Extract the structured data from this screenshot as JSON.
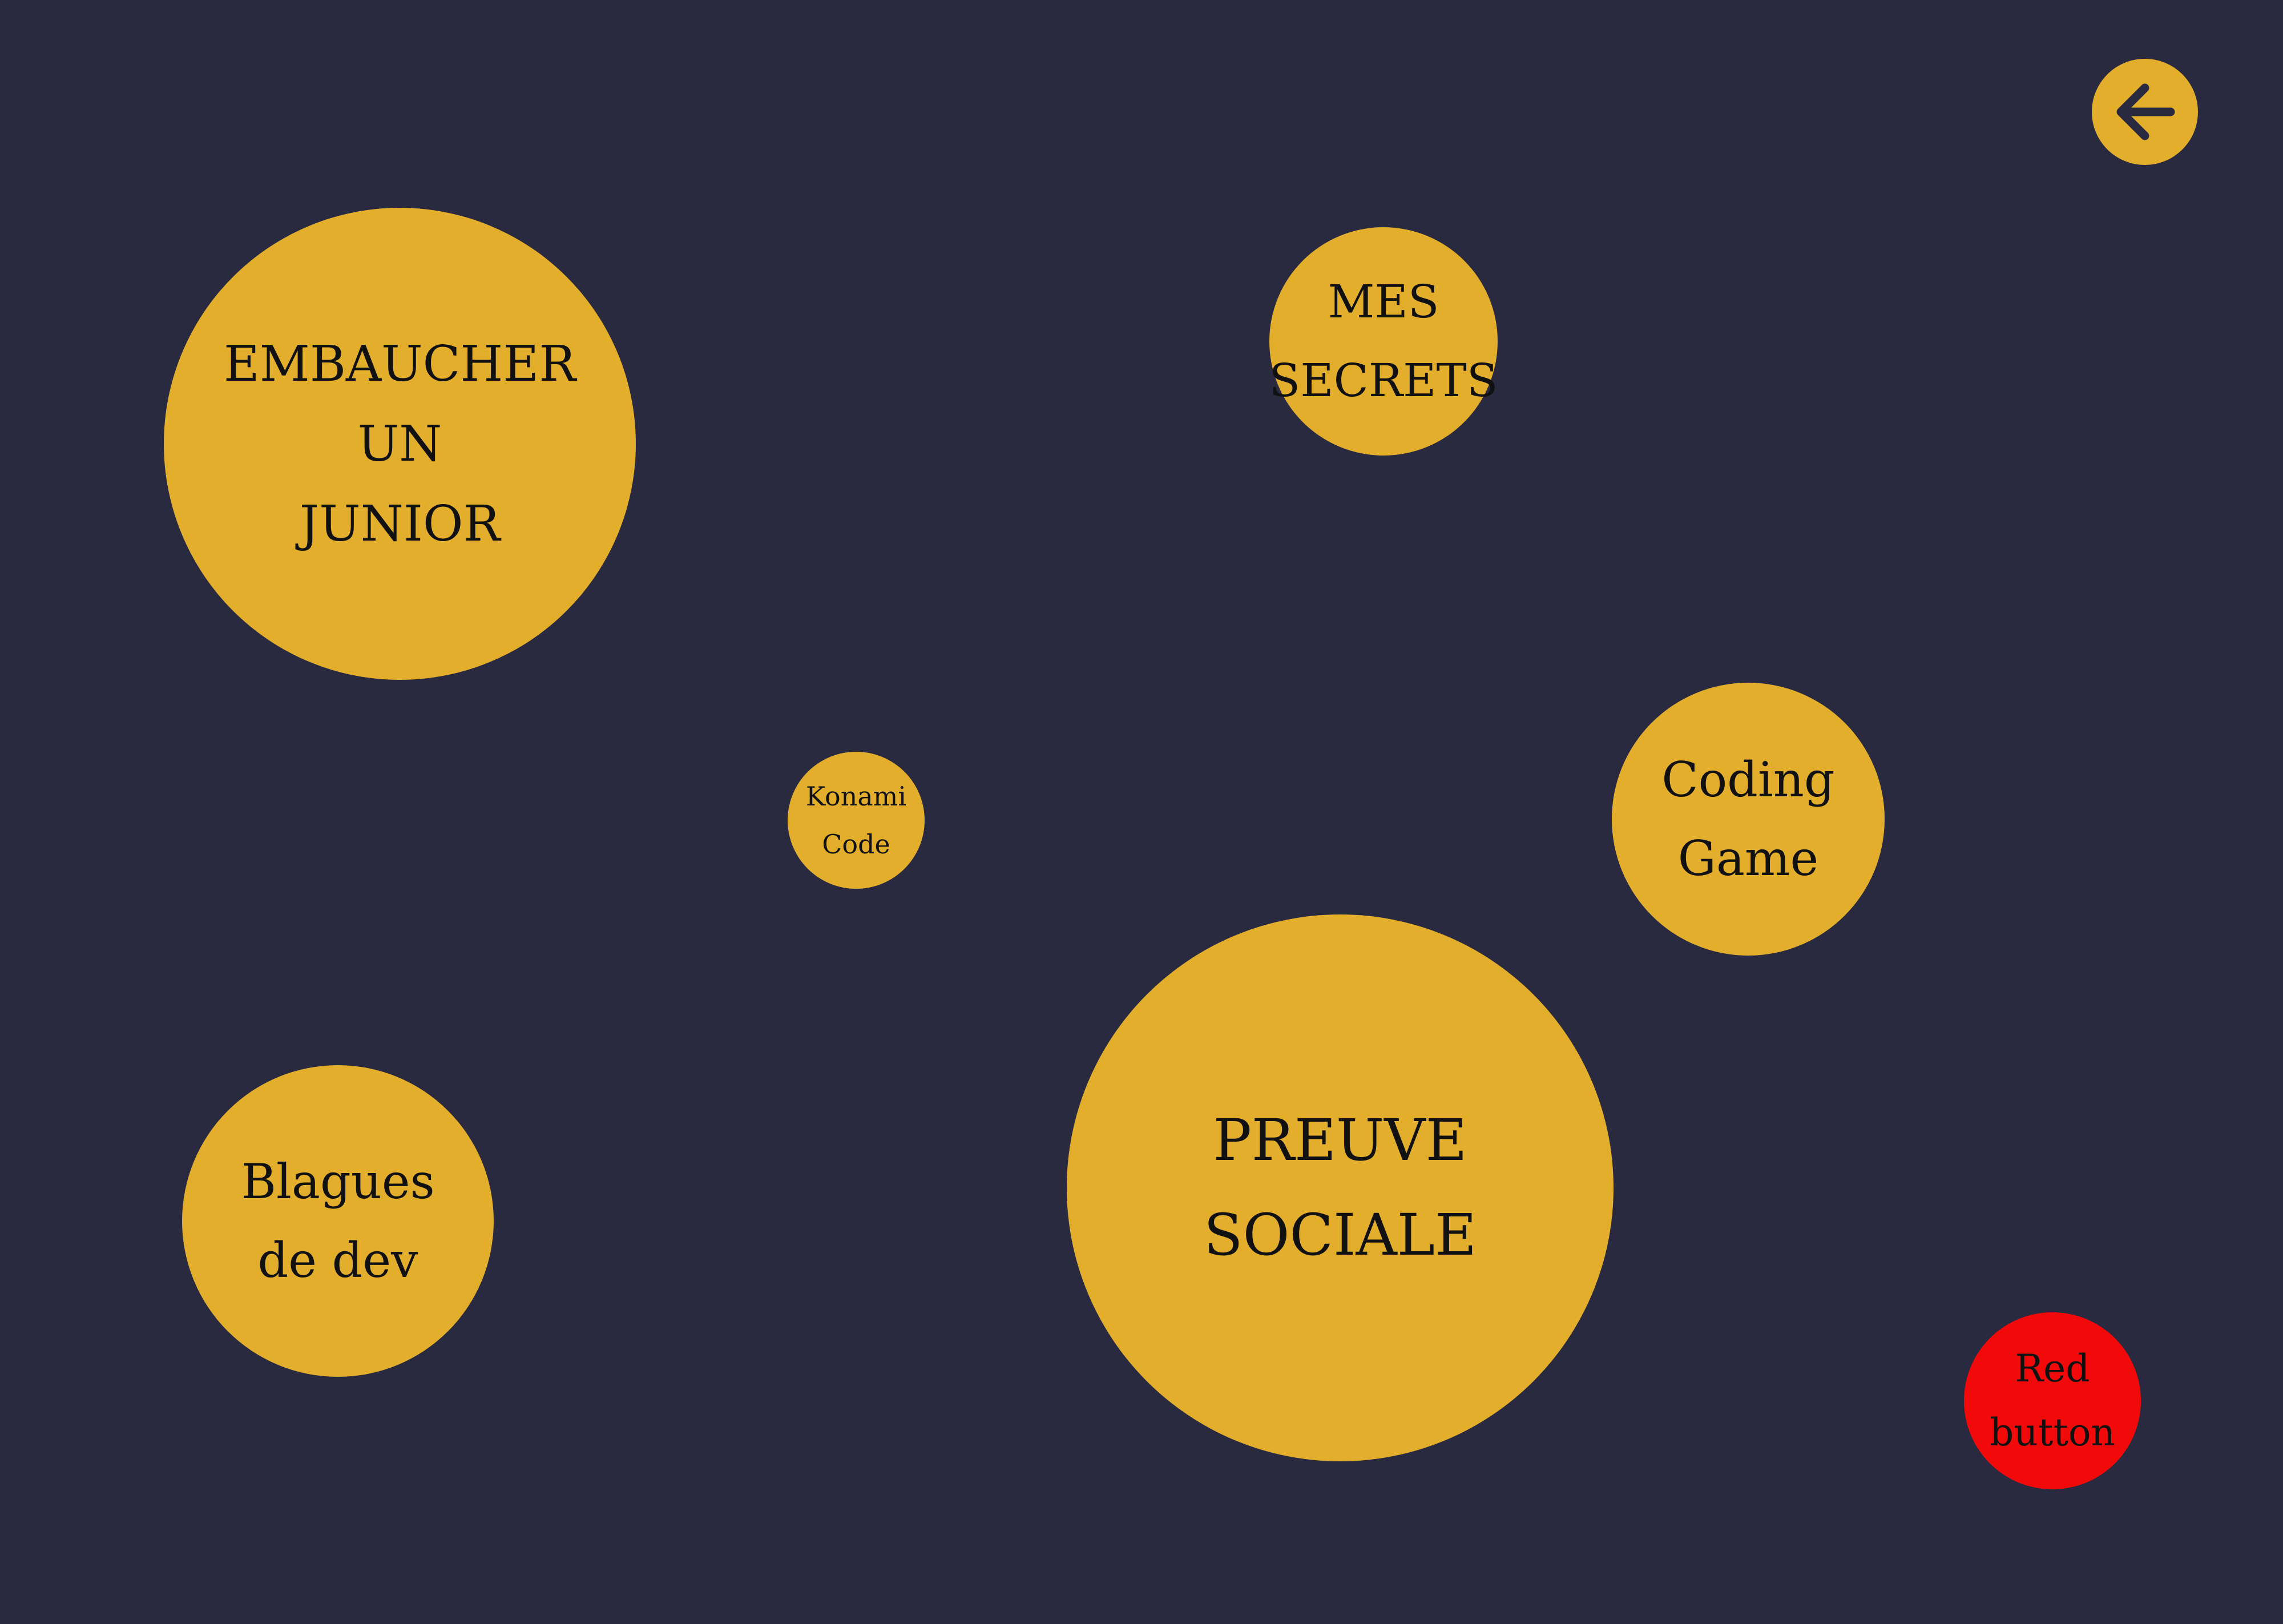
{
  "colors": {
    "background": "#292a3f",
    "bubble": "#e2ae2b",
    "red_button": "#f20a0a",
    "text": "#111111"
  },
  "back_button": {
    "icon": "arrow-left-icon"
  },
  "bubbles": {
    "embaucher": {
      "lines": [
        "EMBAUCHER",
        "UN",
        "JUNIOR"
      ]
    },
    "secrets": {
      "lines": [
        "MES",
        "SECRETS"
      ]
    },
    "konami": {
      "lines": [
        "Konami",
        "Code"
      ]
    },
    "coding": {
      "lines": [
        "Coding",
        "Game"
      ]
    },
    "preuve": {
      "lines": [
        "PREUVE",
        "SOCIALE"
      ]
    },
    "blagues": {
      "lines": [
        "Blagues",
        "de dev"
      ]
    },
    "red": {
      "lines": [
        "Red",
        "button"
      ]
    }
  }
}
